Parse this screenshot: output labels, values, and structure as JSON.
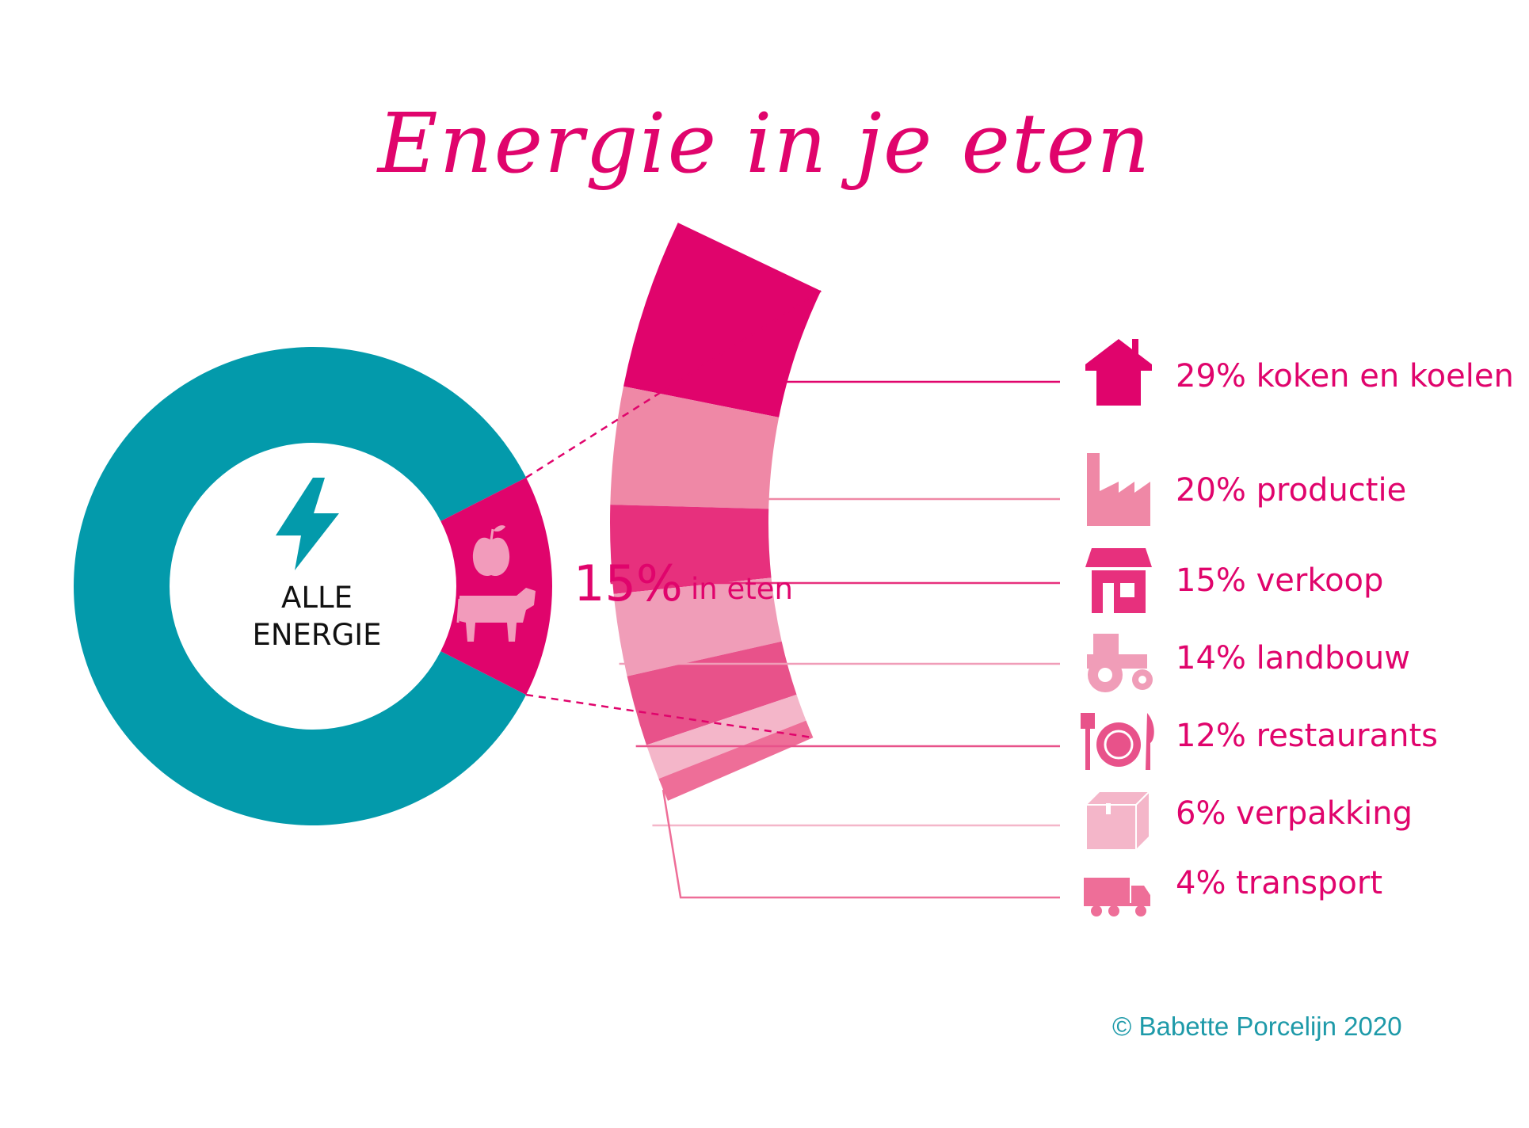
{
  "title": "Energie in je eten",
  "donut": {
    "center_line1": "ALLE",
    "center_line2": "ENERGIE",
    "main_color": "#039aab",
    "food_color": "#e0046c",
    "icons": [
      "lightning-icon",
      "apple-icon",
      "cow-icon"
    ]
  },
  "food_share": {
    "big": "15%",
    "small": "in eten"
  },
  "chart_data": {
    "type": "pie",
    "charts": [
      {
        "name": "ALLE ENERGIE",
        "categories": [
          "in eten",
          ""
        ],
        "values": [
          15,
          85
        ],
        "colors": [
          "#e0046c",
          "#039aab"
        ]
      },
      {
        "name": "in eten",
        "categories": [
          "koken en koelen",
          "productie",
          "verkoop",
          "landbouw",
          "restaurants",
          "verpakking",
          "transport"
        ],
        "values": [
          29,
          20,
          15,
          14,
          12,
          6,
          4
        ],
        "colors": [
          "#e0046c",
          "#ef88a6",
          "#e7307d",
          "#f09db8",
          "#e8528a",
          "#f4b6c9",
          "#ee6e98"
        ]
      }
    ]
  },
  "legend": [
    {
      "label": "29% koken en koelen",
      "icon": "house-icon",
      "color": "#e0046c"
    },
    {
      "label": "20% productie",
      "icon": "factory-icon",
      "color": "#ef88a6"
    },
    {
      "label": "15% verkoop",
      "icon": "shop-icon",
      "color": "#e7307d"
    },
    {
      "label": "14% landbouw",
      "icon": "tractor-icon",
      "color": "#f09db8"
    },
    {
      "label": "12% restaurants",
      "icon": "cutlery-icon",
      "color": "#e8528a"
    },
    {
      "label": "6% verpakking",
      "icon": "box-icon",
      "color": "#f4b6c9"
    },
    {
      "label": "4% transport",
      "icon": "truck-icon",
      "color": "#ee6e98"
    }
  ],
  "copyright": "© Babette Porcelijn 2020"
}
